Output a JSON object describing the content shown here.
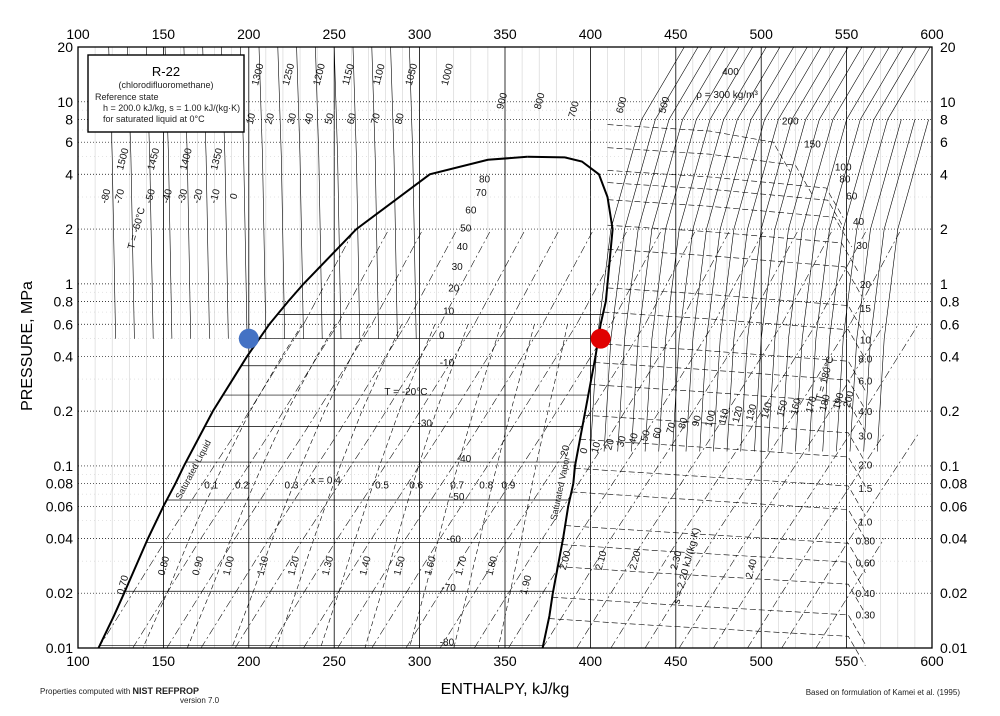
{
  "chart_data": {
    "type": "line",
    "title": "R-22",
    "subtitle": "(chlorodifluoromethane)",
    "reference_state": [
      "Reference state",
      "h = 200.0 kJ/kg,   s = 1.00 kJ/(kg·K)",
      "for saturated liquid at 0°C"
    ],
    "xlabel": "ENTHALPY, kJ/kg",
    "ylabel": "PRESSURE, MPa",
    "xlim": [
      100,
      600
    ],
    "ylim": [
      0.01,
      20
    ],
    "y_scale": "log",
    "x_ticks": [
      100,
      150,
      200,
      250,
      300,
      350,
      400,
      450,
      500,
      550,
      600
    ],
    "x_tick_labels": [
      "100",
      "150",
      "200",
      "250",
      "300",
      "350",
      "400",
      "450",
      "500",
      "550",
      "600"
    ],
    "y_ticks": [
      0.01,
      0.02,
      0.04,
      0.06,
      0.08,
      0.1,
      0.2,
      0.4,
      0.6,
      0.8,
      1,
      2,
      4,
      6,
      8,
      10,
      20
    ],
    "y_tick_labels": [
      "0.01",
      "0.02",
      "0.04",
      "0.06",
      "0.08",
      "0.1",
      "0.2",
      "0.4",
      "0.6",
      "0.8",
      "1",
      "2",
      "4",
      "6",
      "8",
      "10",
      "20"
    ],
    "grid": true,
    "series": [
      {
        "name": "Saturated Liquid",
        "points": [
          [
            112,
            0.01
          ],
          [
            121,
            0.015
          ],
          [
            127,
            0.02
          ],
          [
            141,
            0.04
          ],
          [
            150,
            0.06
          ],
          [
            157,
            0.08
          ],
          [
            162,
            0.1
          ],
          [
            179,
            0.2
          ],
          [
            199,
            0.4
          ],
          [
            212,
            0.6
          ],
          [
            223,
            0.8
          ],
          [
            232,
            1.0
          ],
          [
            263,
            2.0
          ],
          [
            306,
            4.0
          ],
          [
            340,
            4.8
          ],
          [
            363,
            4.99
          ]
        ]
      },
      {
        "name": "Saturated Vapor",
        "points": [
          [
            372,
            0.01
          ],
          [
            376,
            0.015
          ],
          [
            378,
            0.02
          ],
          [
            384,
            0.04
          ],
          [
            387,
            0.06
          ],
          [
            390,
            0.08
          ],
          [
            391,
            0.1
          ],
          [
            397,
            0.2
          ],
          [
            403,
            0.4
          ],
          [
            406,
            0.6
          ],
          [
            409,
            0.8
          ],
          [
            410,
            1.0
          ],
          [
            413,
            2.0
          ],
          [
            410,
            3.0
          ],
          [
            405,
            4.0
          ],
          [
            395,
            4.7
          ],
          [
            385,
            4.95
          ],
          [
            363,
            4.99
          ]
        ]
      }
    ],
    "isotherm_labels": [
      {
        "text": "T = -20°C",
        "h": 292,
        "p": 0.245
      },
      {
        "text": "-80",
        "h": 316,
        "p": 0.0103
      },
      {
        "text": "-70",
        "h": 317,
        "p": 0.0205
      },
      {
        "text": "-60",
        "h": 320,
        "p": 0.038
      },
      {
        "text": "-50",
        "h": 322,
        "p": 0.065
      },
      {
        "text": "-40",
        "h": 326,
        "p": 0.105
      },
      {
        "text": "-30",
        "h": 303,
        "p": 0.165
      },
      {
        "text": "-10",
        "h": 316,
        "p": 0.355
      },
      {
        "text": "0",
        "h": 313,
        "p": 0.5
      },
      {
        "text": "10",
        "h": 317,
        "p": 0.68
      },
      {
        "text": "20",
        "h": 320,
        "p": 0.91
      },
      {
        "text": "30",
        "h": 322,
        "p": 1.19
      },
      {
        "text": "40",
        "h": 325,
        "p": 1.53
      },
      {
        "text": "50",
        "h": 327,
        "p": 1.94
      },
      {
        "text": "60",
        "h": 330,
        "p": 2.43
      },
      {
        "text": "70",
        "h": 336,
        "p": 3.03
      },
      {
        "text": "80",
        "h": 338,
        "p": 3.6
      }
    ],
    "quality_labels": [
      {
        "text": "0.1",
        "h": 178,
        "p": 0.075
      },
      {
        "text": "0.2",
        "h": 196,
        "p": 0.075
      },
      {
        "text": "0.3",
        "h": 225,
        "p": 0.075
      },
      {
        "text": "x = 0.4",
        "h": 245,
        "p": 0.08
      },
      {
        "text": "0.5",
        "h": 278,
        "p": 0.075
      },
      {
        "text": "0.6",
        "h": 298,
        "p": 0.075
      },
      {
        "text": "0.7",
        "h": 322,
        "p": 0.075
      },
      {
        "text": "0.8",
        "h": 339,
        "p": 0.075
      },
      {
        "text": "0.9",
        "h": 352,
        "p": 0.075
      }
    ],
    "entropy_labels": [
      {
        "text": "0.70",
        "h": 128,
        "p": 0.022
      },
      {
        "text": "0.80",
        "h": 152,
        "p": 0.028
      },
      {
        "text": "0.90",
        "h": 172,
        "p": 0.028
      },
      {
        "text": "1.00",
        "h": 190,
        "p": 0.028
      },
      {
        "text": "1.10",
        "h": 210,
        "p": 0.028
      },
      {
        "text": "1.20",
        "h": 228,
        "p": 0.028
      },
      {
        "text": "1.30",
        "h": 248,
        "p": 0.028
      },
      {
        "text": "1.40",
        "h": 270,
        "p": 0.028
      },
      {
        "text": "1.50",
        "h": 290,
        "p": 0.028
      },
      {
        "text": "1.60",
        "h": 308,
        "p": 0.028
      },
      {
        "text": "1.70",
        "h": 326,
        "p": 0.028
      },
      {
        "text": "1.80",
        "h": 344,
        "p": 0.028
      },
      {
        "text": "1.90",
        "h": 364,
        "p": 0.022
      },
      {
        "text": "2.00",
        "h": 387,
        "p": 0.03
      },
      {
        "text": "2.10",
        "h": 408,
        "p": 0.03
      },
      {
        "text": "2.20",
        "h": 428,
        "p": 0.03
      },
      {
        "text": "2.30",
        "h": 452,
        "p": 0.03
      },
      {
        "text": "2.40",
        "h": 496,
        "p": 0.027
      },
      {
        "text": "s = 2.20 kJ/(kg·K)",
        "h": 458,
        "p": 0.028
      }
    ],
    "density_labels": [
      {
        "text": "ρ = 300 kg/m³",
        "h": 480,
        "p": 10.5
      },
      {
        "text": "400",
        "h": 482,
        "p": 14.0
      },
      {
        "text": "200",
        "h": 517,
        "p": 7.5
      },
      {
        "text": "150",
        "h": 530,
        "p": 5.6
      },
      {
        "text": "100",
        "h": 548,
        "p": 4.2
      },
      {
        "text": "80",
        "h": 549,
        "p": 3.6
      },
      {
        "text": "60",
        "h": 553,
        "p": 2.9
      },
      {
        "text": "40",
        "h": 557,
        "p": 2.1
      },
      {
        "text": "30",
        "h": 559,
        "p": 1.55
      },
      {
        "text": "20",
        "h": 561,
        "p": 0.95
      },
      {
        "text": "15",
        "h": 561,
        "p": 0.7
      },
      {
        "text": "10",
        "h": 561,
        "p": 0.47
      },
      {
        "text": "8.0",
        "h": 561,
        "p": 0.37
      },
      {
        "text": "6.0",
        "h": 561,
        "p": 0.28
      },
      {
        "text": "4.0",
        "h": 561,
        "p": 0.19
      },
      {
        "text": "3.0",
        "h": 561,
        "p": 0.14
      },
      {
        "text": "2.0",
        "h": 561,
        "p": 0.097
      },
      {
        "text": "1.5",
        "h": 561,
        "p": 0.072
      },
      {
        "text": "1.0",
        "h": 561,
        "p": 0.047
      },
      {
        "text": "0.80",
        "h": 561,
        "p": 0.037
      },
      {
        "text": "0.60",
        "h": 561,
        "p": 0.028
      },
      {
        "text": "0.40",
        "h": 561,
        "p": 0.019
      },
      {
        "text": "0.30",
        "h": 561,
        "p": 0.0145
      }
    ],
    "vapor_isotherm_labels": [
      {
        "text": "20",
        "h": 387,
        "p": 0.12
      },
      {
        "text": "0",
        "h": 398,
        "p": 0.12
      },
      {
        "text": "10",
        "h": 405,
        "p": 0.125
      },
      {
        "text": "20",
        "h": 413,
        "p": 0.13
      },
      {
        "text": "30",
        "h": 420,
        "p": 0.135
      },
      {
        "text": "40",
        "h": 427,
        "p": 0.14
      },
      {
        "text": "50",
        "h": 434,
        "p": 0.145
      },
      {
        "text": "60",
        "h": 441,
        "p": 0.15
      },
      {
        "text": "70",
        "h": 449,
        "p": 0.16
      },
      {
        "text": "80",
        "h": 456,
        "p": 0.17
      },
      {
        "text": "90",
        "h": 464,
        "p": 0.175
      },
      {
        "text": "100",
        "h": 472,
        "p": 0.18
      },
      {
        "text": "110",
        "h": 480,
        "p": 0.185
      },
      {
        "text": "120",
        "h": 488,
        "p": 0.19
      },
      {
        "text": "130",
        "h": 496,
        "p": 0.195
      },
      {
        "text": "140",
        "h": 505,
        "p": 0.2
      },
      {
        "text": "150",
        "h": 514,
        "p": 0.205
      },
      {
        "text": "160",
        "h": 522,
        "p": 0.21
      },
      {
        "text": "170",
        "h": 531,
        "p": 0.215
      },
      {
        "text": "180",
        "h": 539,
        "p": 0.22
      },
      {
        "text": "190",
        "h": 547,
        "p": 0.225
      },
      {
        "text": "200",
        "h": 553,
        "p": 0.23
      },
      {
        "text": "T = 180°C",
        "h": 539,
        "p": 0.3
      }
    ],
    "liquid_isotherm_labels": [
      {
        "text": "T = -60°C",
        "h": 136,
        "p": 2.0
      },
      {
        "text": "-80",
        "h": 118,
        "p": 3.0
      },
      {
        "text": "-70",
        "h": 126,
        "p": 3.0
      },
      {
        "text": "-50",
        "h": 144,
        "p": 3.0
      },
      {
        "text": "-40",
        "h": 154,
        "p": 3.0
      },
      {
        "text": "-30",
        "h": 163,
        "p": 3.0
      },
      {
        "text": "-20",
        "h": 172,
        "p": 3.0
      },
      {
        "text": "-10",
        "h": 182,
        "p": 3.0
      },
      {
        "text": "0",
        "h": 193,
        "p": 3.0
      },
      {
        "text": "10",
        "h": 203,
        "p": 8.0
      },
      {
        "text": "20",
        "h": 214,
        "p": 8.0
      },
      {
        "text": "30",
        "h": 227,
        "p": 8.0
      },
      {
        "text": "40",
        "h": 237,
        "p": 8.0
      },
      {
        "text": "50",
        "h": 249,
        "p": 8.0
      },
      {
        "text": "60",
        "h": 262,
        "p": 8.0
      },
      {
        "text": "70",
        "h": 276,
        "p": 8.0
      },
      {
        "text": "80",
        "h": 290,
        "p": 8.0
      }
    ],
    "liquid_density_labels": [
      {
        "text": "1500",
        "h": 128,
        "p": 4.8
      },
      {
        "text": "1450",
        "h": 146,
        "p": 4.8
      },
      {
        "text": "1400",
        "h": 165,
        "p": 4.8
      },
      {
        "text": "1350",
        "h": 183,
        "p": 4.8
      },
      {
        "text": "1300",
        "h": 207,
        "p": 14.0
      },
      {
        "text": "1250",
        "h": 225,
        "p": 14.0
      },
      {
        "text": "1200",
        "h": 243,
        "p": 14.0
      },
      {
        "text": "1150",
        "h": 260,
        "p": 14.0
      },
      {
        "text": "1100",
        "h": 278,
        "p": 14.0
      },
      {
        "text": "1050",
        "h": 297,
        "p": 14.0
      },
      {
        "text": "1000",
        "h": 318,
        "p": 14.0
      },
      {
        "text": "900",
        "h": 350,
        "p": 10.0
      },
      {
        "text": "800",
        "h": 372,
        "p": 10.0
      },
      {
        "text": "700",
        "h": 392,
        "p": 9.0
      },
      {
        "text": "600",
        "h": 420,
        "p": 9.5
      },
      {
        "text": "500",
        "h": 445,
        "p": 9.5
      }
    ],
    "markers": [
      {
        "name": "blue point",
        "h": 200,
        "p": 0.5,
        "color": "#4472c4"
      },
      {
        "name": "red point",
        "h": 406,
        "p": 0.5,
        "color": "#e00000"
      }
    ],
    "annotations": [
      "Saturated Liquid",
      "Saturated Vapor"
    ],
    "footer_left": [
      "Properties computed with",
      "NIST REFPROP",
      "version 7.0"
    ],
    "footer_right": "Based on formulation of Kamei et al. (1995)"
  }
}
